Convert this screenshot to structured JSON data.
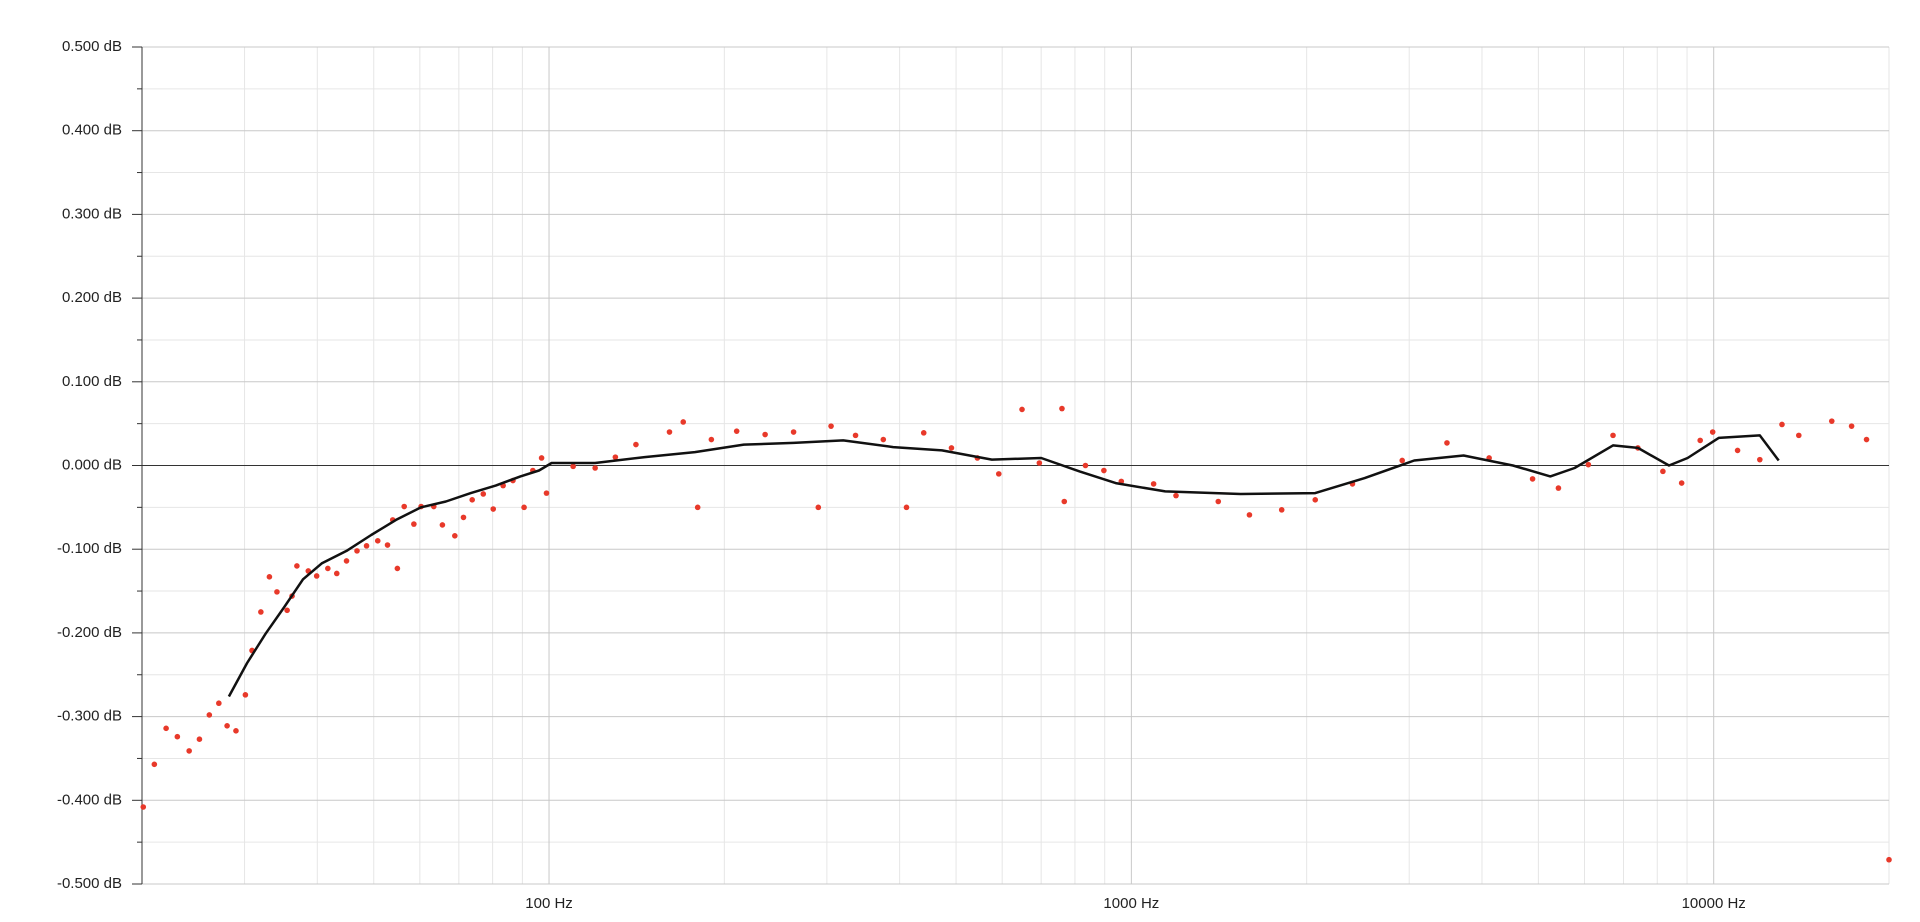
{
  "chart_data": {
    "type": "line",
    "xscale": "log",
    "grid": true,
    "xlim": [
      20,
      20000
    ],
    "ylim": [
      -0.5,
      0.5
    ],
    "xticks": [
      {
        "value": 100,
        "label": "100 Hz"
      },
      {
        "value": 1000,
        "label": "1000 Hz"
      },
      {
        "value": 10000,
        "label": "10000 Hz"
      }
    ],
    "xminorticks": [
      20,
      30,
      40,
      50,
      60,
      70,
      80,
      90,
      200,
      300,
      400,
      500,
      600,
      700,
      800,
      900,
      2000,
      3000,
      4000,
      5000,
      6000,
      7000,
      8000,
      9000,
      20000
    ],
    "yticks": [
      {
        "value": -0.5,
        "label": "-0.500 dB"
      },
      {
        "value": -0.4,
        "label": "-0.400 dB"
      },
      {
        "value": -0.3,
        "label": "-0.300 dB"
      },
      {
        "value": -0.2,
        "label": "-0.200 dB"
      },
      {
        "value": -0.1,
        "label": "-0.100 dB"
      },
      {
        "value": 0,
        "label": "0.000 dB"
      },
      {
        "value": 0.1,
        "label": "0.100 dB"
      },
      {
        "value": 0.2,
        "label": "0.200 dB"
      },
      {
        "value": 0.3,
        "label": "0.300 dB"
      },
      {
        "value": 0.4,
        "label": "0.400 dB"
      },
      {
        "value": 0.5,
        "label": "0.500 dB"
      }
    ],
    "yminorticks": [
      -0.45,
      -0.35,
      -0.25,
      -0.15,
      -0.05,
      0.05,
      0.15,
      0.25,
      0.35,
      0.45
    ],
    "series": [
      {
        "type": "scatter",
        "color": "#e8392a",
        "x": [
          20.1,
          21,
          22,
          23,
          24.1,
          25.1,
          26.1,
          27.1,
          28,
          29,
          30.1,
          30.9,
          32,
          33.1,
          34.1,
          35.5,
          36.2,
          36.9,
          38.6,
          39.9,
          41.7,
          43.2,
          44.9,
          46.8,
          48.6,
          50.8,
          52.8,
          54.9,
          53.9,
          56.4,
          60.3,
          63.4,
          58.6,
          65.6,
          68.9,
          71.3,
          73.8,
          77.1,
          80.2,
          83.4,
          86.7,
          90.6,
          93.8,
          97.1,
          99,
          110,
          120,
          130,
          141,
          161,
          170,
          180,
          190,
          210,
          235,
          263,
          290,
          305,
          336,
          375,
          411,
          440,
          491,
          544,
          592,
          649,
          695,
          760,
          767,
          834,
          897,
          961,
          1092,
          1193,
          1410,
          1595,
          1812,
          2069,
          2397,
          2918,
          3483,
          4115,
          4886,
          5412,
          6092,
          6716,
          7410,
          8180,
          8810,
          9480,
          9960,
          10990,
          12000,
          13100,
          14000,
          15950,
          17250,
          18300,
          20000
        ],
        "values": [
          -0.408,
          -0.357,
          -0.314,
          -0.324,
          -0.341,
          -0.327,
          -0.298,
          -0.284,
          -0.311,
          -0.317,
          -0.274,
          -0.221,
          -0.175,
          -0.133,
          -0.151,
          -0.173,
          -0.156,
          -0.12,
          -0.126,
          -0.132,
          -0.123,
          -0.129,
          -0.114,
          -0.102,
          -0.096,
          -0.09,
          -0.095,
          -0.123,
          -0.065,
          -0.049,
          -0.049,
          -0.049,
          -0.07,
          -0.071,
          -0.084,
          -0.062,
          -0.041,
          -0.034,
          -0.052,
          -0.024,
          -0.018,
          -0.05,
          -0.006,
          0.009,
          -0.033,
          -0.001,
          -0.003,
          0.01,
          0.025,
          0.04,
          0.052,
          -0.05,
          0.031,
          0.041,
          0.037,
          0.04,
          -0.05,
          0.047,
          0.036,
          0.031,
          -0.05,
          0.039,
          0.021,
          0.009,
          -0.01,
          0.067,
          0.003,
          0.068,
          -0.043,
          0,
          -0.006,
          -0.019,
          -0.022,
          -0.036,
          -0.043,
          -0.059,
          -0.053,
          -0.041,
          -0.022,
          0.006,
          0.027,
          0.009,
          -0.016,
          -0.027,
          0.001,
          0.036,
          0.021,
          -0.007,
          -0.021,
          0.03,
          0.04,
          0.018,
          0.007,
          0.049,
          0.036,
          0.053,
          0.047,
          0.031,
          -0.471
        ]
      },
      {
        "type": "line",
        "color": "#111111",
        "x": [
          28.2,
          30.3,
          32.6,
          35.1,
          37.8,
          40.7,
          44.9,
          49.5,
          54.6,
          60.3,
          66.5,
          73.4,
          81,
          89.3,
          96.1,
          101,
          120,
          146,
          178,
          216,
          263,
          320,
          390,
          473,
          576,
          700,
          815,
          940,
          1143,
          1540,
          2069,
          2516,
          3060,
          3720,
          4520,
          5240,
          5770,
          6716,
          7410,
          8380,
          9020,
          10200,
          12000,
          12930
        ],
        "values": [
          -0.276,
          -0.236,
          -0.201,
          -0.169,
          -0.136,
          -0.117,
          -0.102,
          -0.083,
          -0.065,
          -0.05,
          -0.043,
          -0.033,
          -0.024,
          -0.013,
          -0.006,
          0.003,
          0.003,
          0.01,
          0.016,
          0.025,
          0.027,
          0.03,
          0.022,
          0.018,
          0.007,
          0.009,
          -0.007,
          -0.021,
          -0.031,
          -0.034,
          -0.033,
          -0.015,
          0.006,
          0.012,
          0,
          -0.013,
          -0.003,
          0.024,
          0.021,
          0,
          0.009,
          0.033,
          0.036,
          0.006
        ]
      }
    ]
  }
}
